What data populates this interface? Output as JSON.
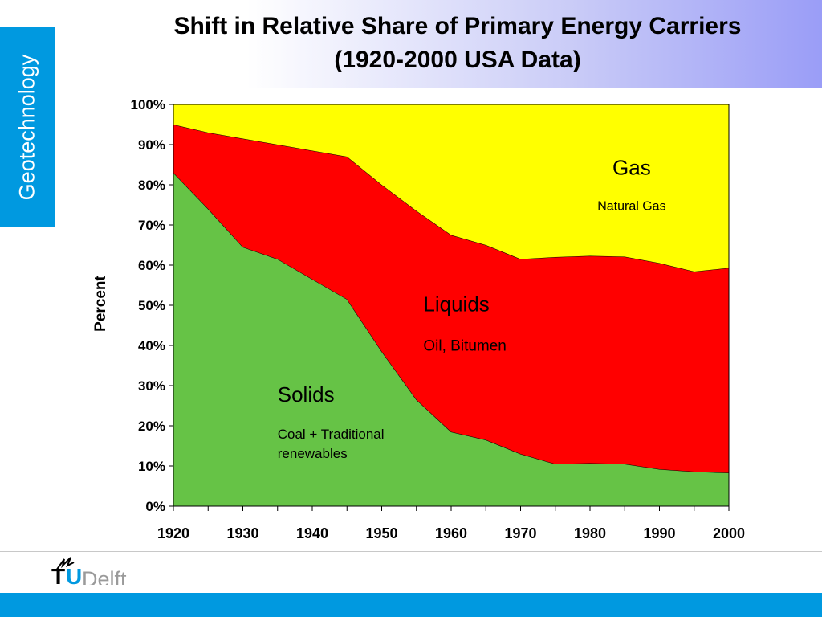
{
  "slide": {
    "title_line1": "Shift in Relative Share of Primary Energy Carriers",
    "title_line2": "(1920-2000 USA Data)",
    "side_tab": "Geotechnology"
  },
  "logo": {
    "t": "T",
    "u": "U",
    "delft": "Delft"
  },
  "colors": {
    "solids": "#66c346",
    "liquids": "#ff0000",
    "gas": "#ffff00",
    "accent": "#0099e0"
  },
  "chart_data": {
    "type": "area",
    "stacked": true,
    "ylabel": "Percent",
    "xlabel": "",
    "ylim": [
      0,
      100
    ],
    "xlim": [
      1920,
      2000
    ],
    "x_ticks": [
      "1920",
      "1930",
      "1940",
      "1950",
      "1960",
      "1970",
      "1980",
      "1990",
      "2000"
    ],
    "y_ticks": [
      "0%",
      "10%",
      "20%",
      "30%",
      "40%",
      "50%",
      "60%",
      "70%",
      "80%",
      "90%",
      "100%"
    ],
    "x": [
      1920,
      1925,
      1930,
      1935,
      1940,
      1945,
      1950,
      1955,
      1960,
      1965,
      1970,
      1975,
      1980,
      1985,
      1990,
      1995,
      2000
    ],
    "series": [
      {
        "name": "Solids",
        "subtitle": "Coal  + Traditional renewables",
        "values": [
          83,
          74,
          64.5,
          61.5,
          56.5,
          51.5,
          38.5,
          26.5,
          18.5,
          16.5,
          13,
          10.5,
          10.7,
          10.5,
          9.2,
          8.6,
          8.3
        ]
      },
      {
        "name": "Liquids",
        "subtitle": "Oil, Bitumen",
        "values": [
          12,
          19,
          27,
          28.5,
          32,
          35.5,
          41.5,
          47,
          49,
          48.5,
          48.5,
          51.5,
          51.6,
          51.6,
          51.3,
          49.8,
          51
        ]
      },
      {
        "name": "Gas",
        "subtitle": "Natural Gas",
        "values": [
          5,
          7,
          8.5,
          10,
          11.5,
          13,
          20,
          26.5,
          32.5,
          35,
          38.5,
          38,
          37.7,
          37.9,
          39.5,
          41.6,
          40.7
        ]
      }
    ]
  }
}
